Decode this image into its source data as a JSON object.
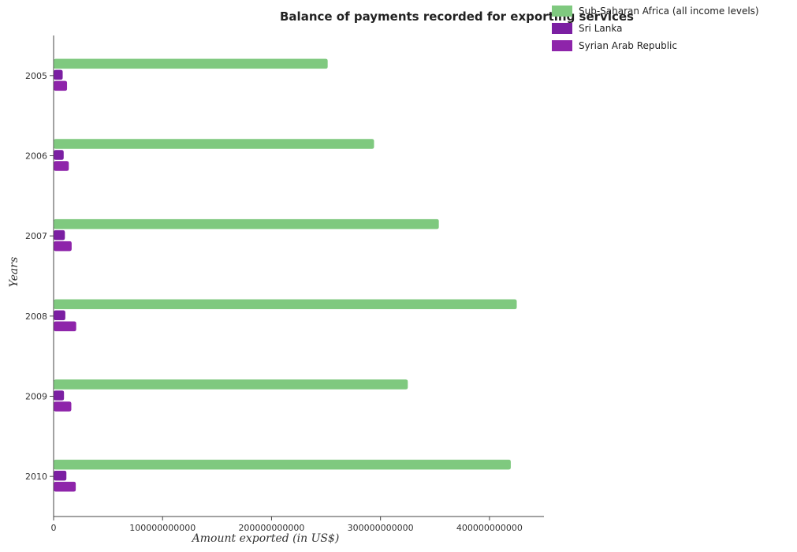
{
  "chart_data": {
    "type": "bar",
    "orientation": "horizontal",
    "title": "Balance of payments recorded for exporting services",
    "xlabel": "Amount exported (in US$)",
    "ylabel": "Years",
    "categories": [
      "2005",
      "2006",
      "2007",
      "2008",
      "2009",
      "2010"
    ],
    "x_ticks": [
      "0",
      "100000000000",
      "200000000000",
      "300000000000",
      "400000000000"
    ],
    "xlim": [
      0,
      450000000000
    ],
    "grid": false,
    "legend_position": "top-right",
    "series": [
      {
        "name": "Sub-Saharan Africa (all income levels)",
        "color": "#7fc97f",
        "values": [
          251000000000,
          293500000000,
          353000000000,
          424500000000,
          324500000000,
          419000000000
        ]
      },
      {
        "name": "Sri Lanka",
        "color": "#7b1fa2",
        "values": [
          7800000000,
          8700000000,
          9800000000,
          10200000000,
          9000000000,
          11200000000
        ]
      },
      {
        "name": "Syrian Arab Republic",
        "color": "#8e24aa",
        "values": [
          11800000000,
          13400000000,
          16000000000,
          20200000000,
          15700000000,
          19800000000
        ]
      }
    ]
  }
}
